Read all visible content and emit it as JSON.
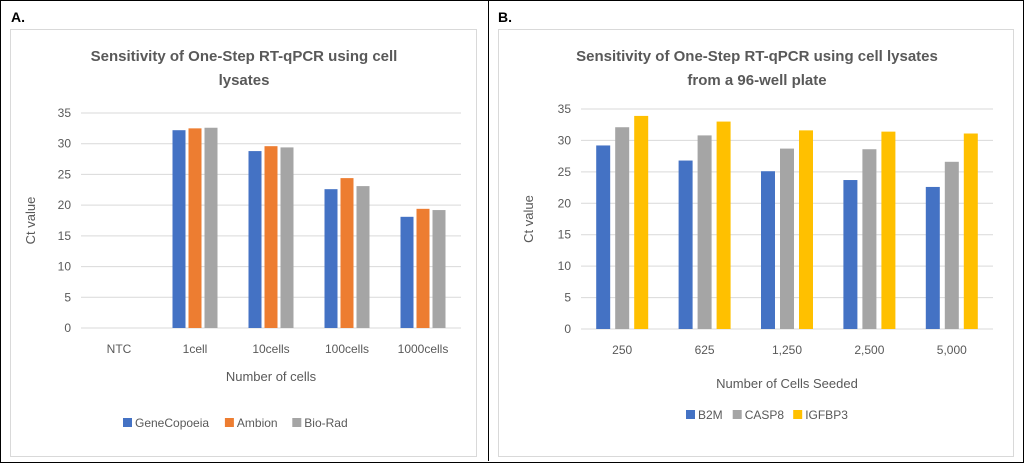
{
  "panels": [
    {
      "label": "A."
    },
    {
      "label": "B."
    }
  ],
  "chart_data": [
    {
      "type": "bar",
      "title": "Sensitivity of One-Step RT-qPCR using cell lysates",
      "title_lines": [
        "Sensitivity of One-Step RT-qPCR using cell",
        "lysates"
      ],
      "xlabel": "Number of cells",
      "ylabel": "Ct value",
      "ylim": [
        0,
        35
      ],
      "yticks": [
        "0",
        "5",
        "10",
        "15",
        "20",
        "25",
        "30",
        "35"
      ],
      "grid": true,
      "legend_position": "bottom",
      "categories": [
        "NTC",
        "1cell",
        "10cells",
        "100cells",
        "1000cells"
      ],
      "series": [
        {
          "name": "GeneCopoeia",
          "color": "#4472c4",
          "values": [
            0,
            32.2,
            28.8,
            22.6,
            18.1
          ]
        },
        {
          "name": "Ambion",
          "color": "#ed7d31",
          "values": [
            0,
            32.5,
            29.6,
            24.4,
            19.4
          ]
        },
        {
          "name": "Bio-Rad",
          "color": "#a5a5a5",
          "values": [
            0,
            32.6,
            29.4,
            23.1,
            19.2
          ]
        }
      ]
    },
    {
      "type": "bar",
      "title": "Sensitivity of One-Step RT-qPCR using cell lysates from a 96-well plate",
      "title_lines": [
        "Sensitivity of One-Step RT-qPCR using cell lysates",
        "from a 96-well plate"
      ],
      "xlabel": "Number of Cells Seeded",
      "ylabel": "Ct value",
      "ylim": [
        0,
        35
      ],
      "yticks": [
        "0",
        "5",
        "10",
        "15",
        "20",
        "25",
        "30",
        "35"
      ],
      "grid": true,
      "legend_position": "bottom",
      "categories": [
        "250",
        "625",
        "1,250",
        "2,500",
        "5,000"
      ],
      "series": [
        {
          "name": "B2M",
          "color": "#4472c4",
          "values": [
            29.2,
            26.8,
            25.1,
            23.7,
            22.6
          ]
        },
        {
          "name": "CASP8",
          "color": "#a5a5a5",
          "values": [
            32.1,
            30.8,
            28.7,
            28.6,
            26.6
          ]
        },
        {
          "name": "IGFBP3",
          "color": "#ffc000",
          "values": [
            33.9,
            33.0,
            31.6,
            31.4,
            31.1
          ]
        }
      ]
    }
  ]
}
